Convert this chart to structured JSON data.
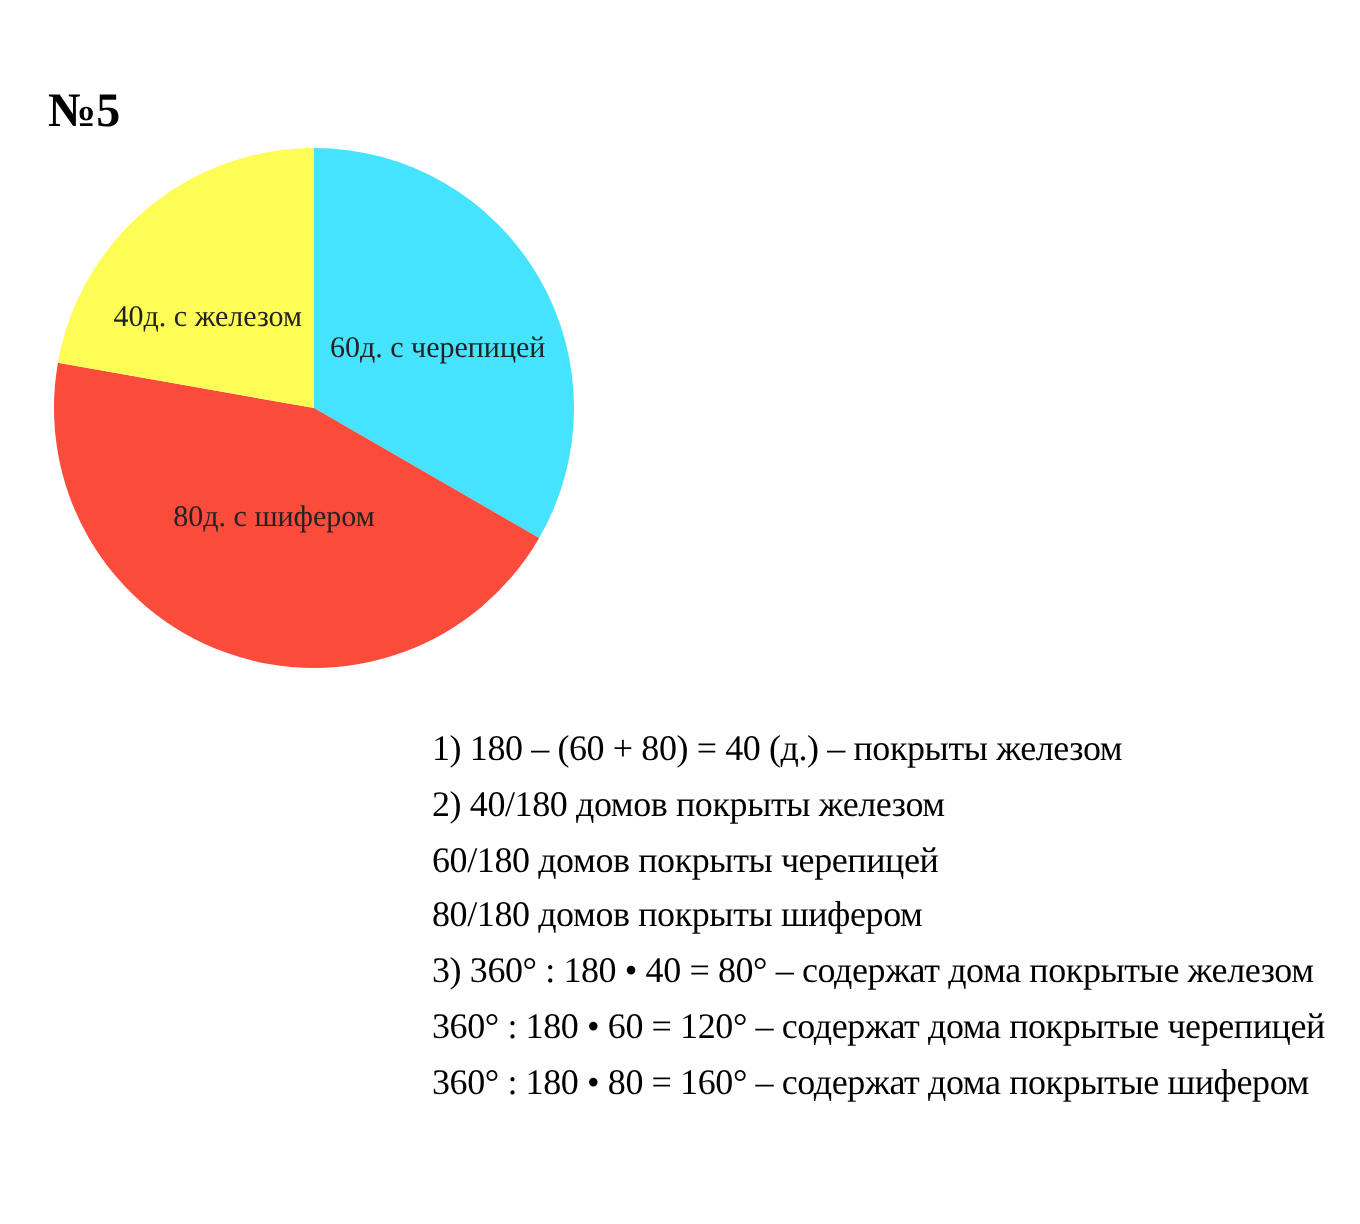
{
  "chart_data": {
    "type": "pie",
    "title": "№5",
    "categories": [
      "60д. с черепицей",
      "80д. с шифером",
      "40д. с железом"
    ],
    "values": [
      60,
      80,
      40
    ],
    "colors": [
      "#45e3fd",
      "#fb4b3b",
      "#fdfd55"
    ],
    "annotations": [
      "1) 180 – (60 + 80) = 40 (д.) – покрыты железом",
      "2) 40/180 домов покрыты железом",
      "60/180 домов покрыты черепицей",
      "80/180 домов покрыты шифером",
      "3) 360° : 180 • 40 = 80° – содержат дома покрытые железом",
      "360° : 180 • 60 = 120° – содержат дома покрытые черепицей",
      "360° : 180 • 80 = 160° – содержат дома покрытые шифером"
    ]
  }
}
